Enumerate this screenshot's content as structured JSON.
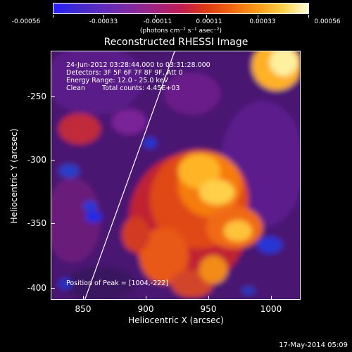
{
  "colorbar": {
    "tick_labels": [
      "-0.00056",
      "-0.00033",
      "-0.00011",
      "0.00011",
      "0.00033",
      "0.00056"
    ],
    "units": "(photons cm⁻² s⁻¹ asec⁻²)"
  },
  "title": "Reconstructed RHESSI Image",
  "info": {
    "time_range": "24-Jun-2012 03:28:44.000 to 03:31:28.000",
    "detectors": "Detectors: 3F 5F 6F 7F 8F 9F, Att 0",
    "energy": "Energy Range: 12.0 - 25.0 keV",
    "algorithm": "Clean",
    "counts": "Total counts: 4.45E+03",
    "peak": "Position of Peak = [1004,-222]"
  },
  "axes": {
    "xlabel": "Heliocentric X (arcsec)",
    "ylabel": "Heliocentric Y (arcsec)",
    "x_ticks": [
      "850",
      "900",
      "950",
      "1000"
    ],
    "y_ticks": [
      "-250",
      "-300",
      "-350",
      "-400"
    ]
  },
  "footer": {
    "date": "17-May-2014 05:09"
  }
}
